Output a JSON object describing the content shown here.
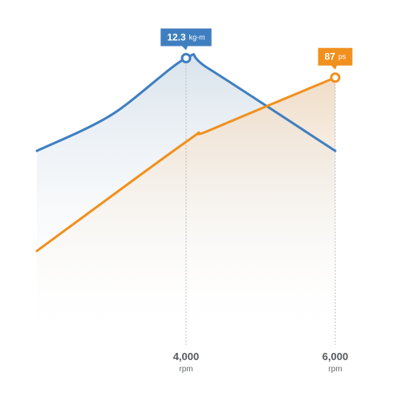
{
  "chart_data": {
    "type": "area",
    "x_unit": "rpm",
    "xlim": [
      2000,
      6000
    ],
    "x_ticks": [
      {
        "value": 4000,
        "label": "4,000",
        "unit": "rpm"
      },
      {
        "value": 6000,
        "label": "6,000",
        "unit": "rpm"
      }
    ],
    "series": [
      {
        "key": "torque",
        "color": "#3f7fc0",
        "fill_color": "#dde6ee",
        "ylim": [
          7.2,
          12.9
        ],
        "points": [
          [
            2000,
            10.5
          ],
          [
            3000,
            11.2
          ],
          [
            4000,
            12.3
          ],
          [
            4300,
            12.1
          ],
          [
            6000,
            10.5
          ]
        ],
        "peak": {
          "x": 4000,
          "y": 12.3,
          "value_label": "12.3",
          "unit_label": "kg-m"
        }
      },
      {
        "key": "power",
        "color": "#f0901e",
        "fill_color": "#f2e0cd",
        "ylim": [
          0,
          105
        ],
        "points": [
          [
            2000,
            25
          ],
          [
            4000,
            64
          ],
          [
            4300,
            68
          ],
          [
            6000,
            87
          ]
        ],
        "peak": {
          "x": 6000,
          "y": 87,
          "value_label": "87",
          "unit_label": "ps"
        }
      }
    ]
  }
}
